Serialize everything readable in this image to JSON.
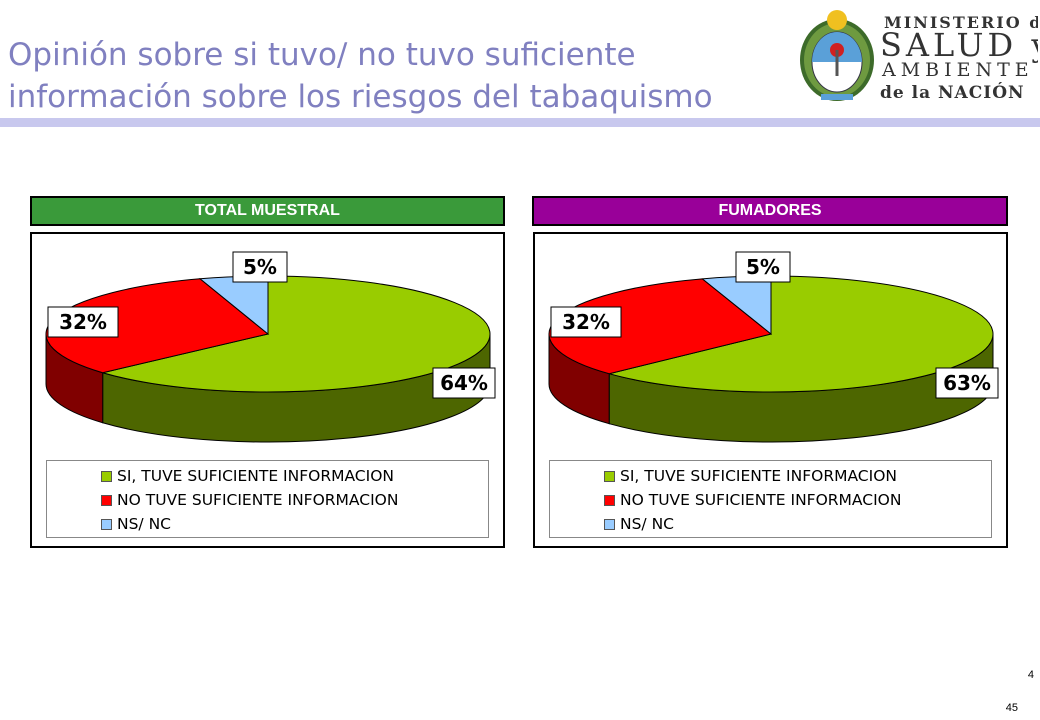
{
  "title_lines": [
    "Opinión sobre si tuvo/ no tuvo suficiente",
    "información sobre los riesgos del tabaquismo"
  ],
  "logo": {
    "line1": "MINISTERIO de",
    "line2": "SALUD y",
    "line3": "AMBIENTE",
    "line4": "de la NACIÓN"
  },
  "page_numbers": [
    "4",
    "45"
  ],
  "colors": {
    "si": "#99cc00",
    "no": "#ff0000",
    "nsnc": "#99ccff",
    "header_total": "#3a9a3a",
    "header_fumadores": "#990099",
    "title": "#8080c0"
  },
  "chart_data": [
    {
      "type": "pie",
      "title": "TOTAL MUESTRAL",
      "three_d": true,
      "legend_position": "bottom",
      "categories": [
        "SI, TUVE SUFICIENTE INFORMACION",
        "NO TUVE SUFICIENTE INFORMACION",
        "NS/ NC"
      ],
      "values": [
        64,
        32,
        5
      ],
      "labels": [
        "64%",
        "32%",
        "5%"
      ]
    },
    {
      "type": "pie",
      "title": "FUMADORES",
      "three_d": true,
      "legend_position": "bottom",
      "categories": [
        "SI, TUVE SUFICIENTE INFORMACION",
        "NO TUVE SUFICIENTE INFORMACION",
        "NS/ NC"
      ],
      "values": [
        63,
        32,
        5
      ],
      "labels": [
        "63%",
        "32%",
        "5%"
      ]
    }
  ]
}
